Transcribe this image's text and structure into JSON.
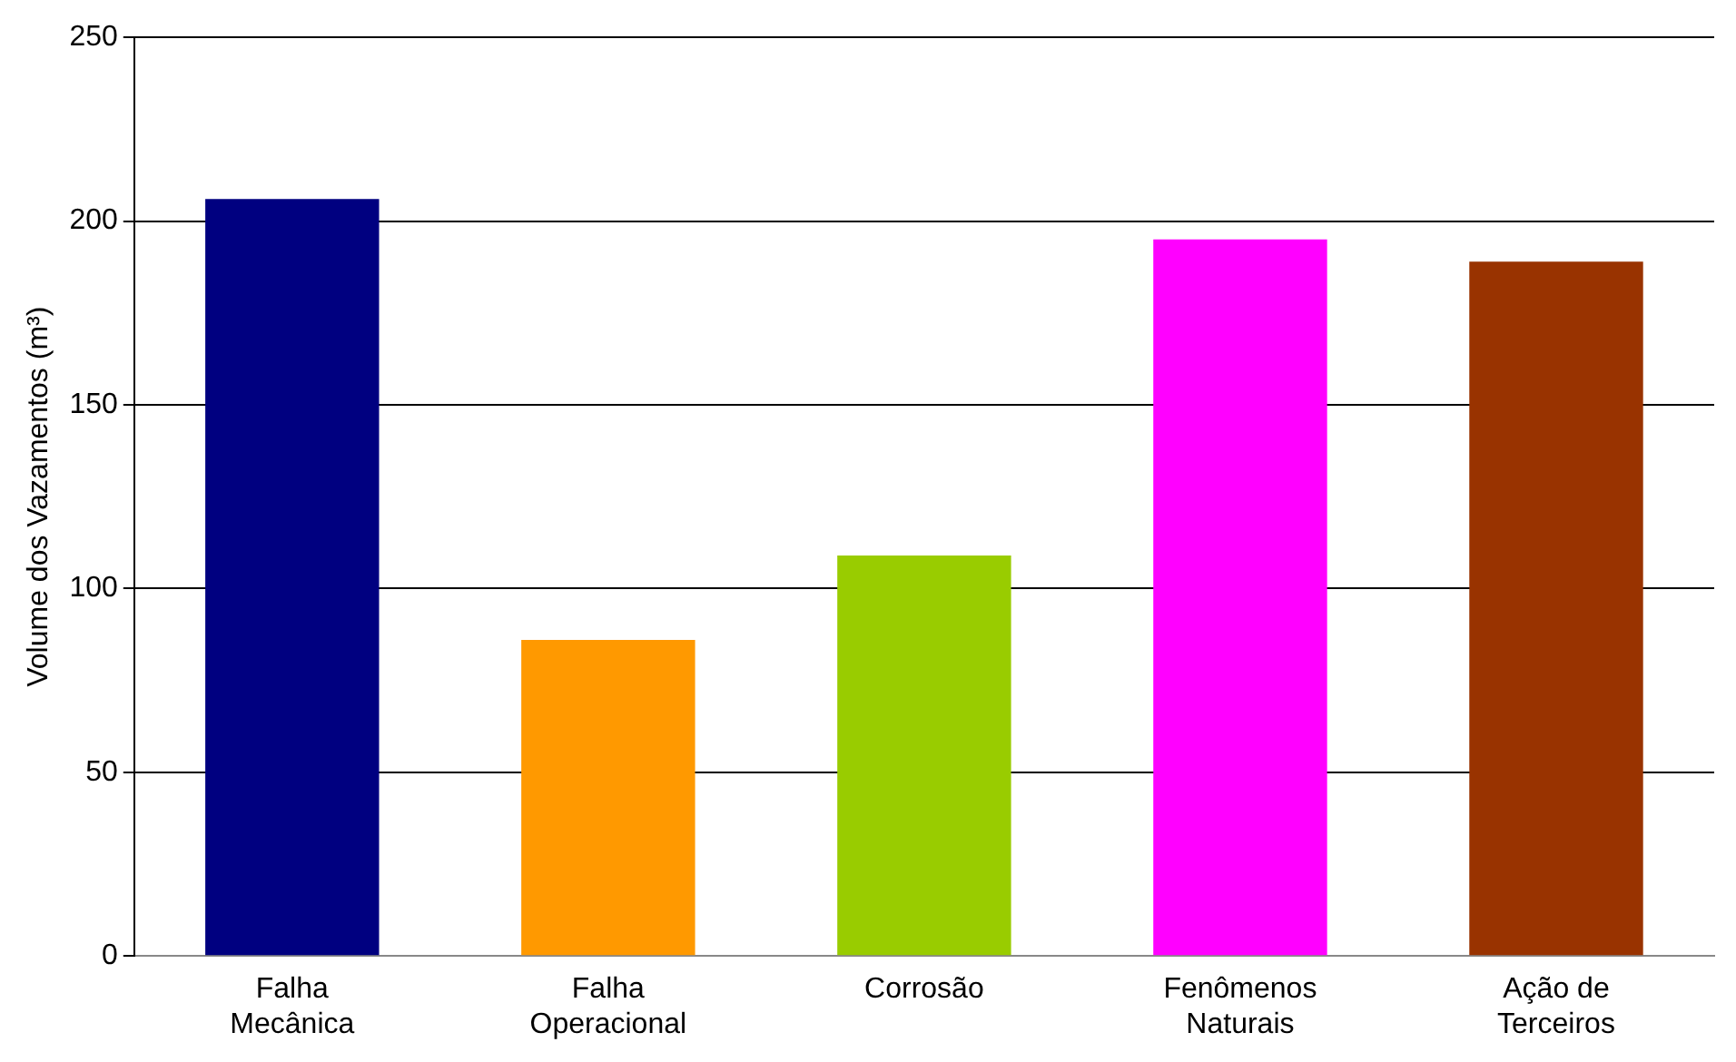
{
  "chart_data": {
    "type": "bar",
    "ylabel": "Volume dos Vazamentos (m³)",
    "categories": [
      "Falha Mecânica",
      "Falha Operacional",
      "Corrosão",
      "Fenômenos Naturais",
      "Ação de Terceiros"
    ],
    "values": [
      206,
      86,
      109,
      195,
      189
    ],
    "colors": [
      "#000080",
      "#ff9900",
      "#99cc00",
      "#ff00ff",
      "#993300"
    ],
    "ylim": [
      0,
      250
    ],
    "yticks": [
      0,
      50,
      100,
      150,
      200,
      250
    ],
    "grid": "y",
    "legend": false
  }
}
